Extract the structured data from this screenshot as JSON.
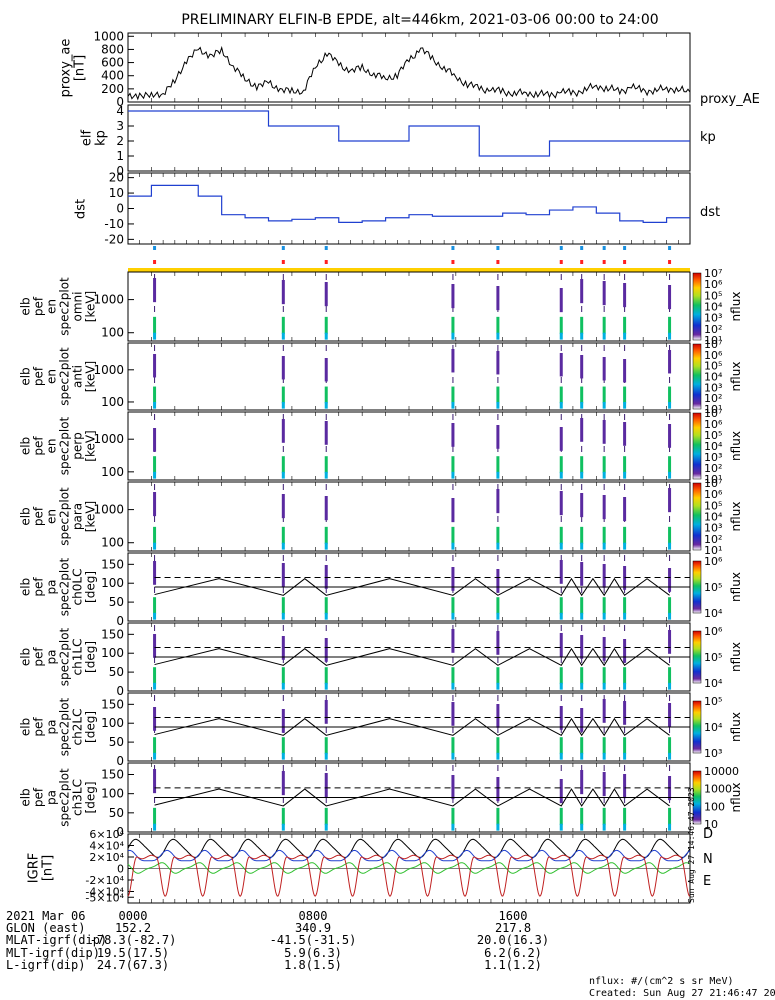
{
  "title": "PRELIMINARY ELFIN-B EPDE, alt=446km, 2021-03-06 00:00 to 24:00",
  "chart_data": [
    {
      "type": "line",
      "panel": "proxy_ae",
      "ylabel": "proxy_ae\n[nT]",
      "legend": "proxy_AE",
      "ylim": [
        0,
        1050
      ],
      "yticks": [
        "1000",
        "800",
        "600",
        "400",
        "200",
        "0"
      ],
      "x_hours": [
        0,
        0.5,
        1,
        1.5,
        2,
        2.5,
        3,
        3.5,
        4,
        4.5,
        5,
        5.5,
        6,
        6.5,
        7,
        7.5,
        8,
        8.5,
        9,
        9.5,
        10,
        10.5,
        11,
        11.5,
        12,
        12.5,
        13,
        13.5,
        14,
        14.5,
        15,
        15.5,
        16,
        16.5,
        17,
        17.5,
        18,
        18.5,
        19,
        19.5,
        20,
        20.5,
        21,
        21.5,
        22,
        22.5,
        23,
        23.5,
        24
      ],
      "values": [
        60,
        120,
        80,
        150,
        300,
        650,
        780,
        720,
        760,
        560,
        330,
        250,
        280,
        200,
        150,
        180,
        520,
        760,
        560,
        480,
        510,
        430,
        350,
        420,
        630,
        820,
        650,
        520,
        380,
        270,
        210,
        180,
        160,
        130,
        140,
        120,
        110,
        150,
        140,
        180,
        250,
        200,
        170,
        220,
        180,
        160,
        220,
        180,
        150
      ]
    },
    {
      "type": "step",
      "panel": "kp",
      "ylabel": "elf\nkp",
      "legend": "kp",
      "color": "#2040d0",
      "ylim": [
        0,
        4.4
      ],
      "yticks": [
        "4",
        "3",
        "2",
        "1",
        "0"
      ],
      "x_hours": [
        0,
        3,
        6,
        9,
        12,
        15,
        18,
        21,
        24
      ],
      "values": [
        4,
        4,
        3,
        2,
        3,
        1,
        2,
        2
      ]
    },
    {
      "type": "step",
      "panel": "dst",
      "ylabel": "dst",
      "legend": "dst",
      "color": "#2040d0",
      "ylim": [
        -23,
        23
      ],
      "yticks": [
        "20",
        "10",
        "0",
        "-10",
        "-20"
      ],
      "x_hours": [
        0,
        1,
        2,
        3,
        4,
        5,
        6,
        7,
        8,
        9,
        10,
        11,
        12,
        13,
        14,
        15,
        16,
        17,
        18,
        19,
        20,
        21,
        22,
        23,
        24
      ],
      "values": [
        8,
        15,
        15,
        8,
        -4,
        -6,
        -8,
        -7,
        -6,
        -9,
        -8,
        -6,
        -4,
        -5,
        -5,
        -5,
        -3,
        -4,
        -1,
        1,
        -3,
        -8,
        -9,
        -6,
        -2
      ]
    },
    {
      "type": "heatmap",
      "panel": "spectrograms",
      "pass_hours": [
        1.3,
        7.6,
        9.7,
        15.9,
        18.1,
        21.2,
        22.2,
        23.3,
        24.3,
        26.5
      ],
      "axis_hours": [
        0,
        27.5
      ],
      "energy_panels": [
        {
          "ylabel": "elb\npef\nen\nspec2plot\nomni\n[keV]",
          "yticks": [
            "1000",
            "100"
          ],
          "cbar": [
            "10⁷",
            "10⁶",
            "10⁵",
            "10⁴",
            "10³",
            "10²",
            "10¹"
          ],
          "cbar_label": "nflux"
        },
        {
          "ylabel": "elb\npef\nen\nspec2plot\nanti\n[keV]",
          "yticks": [
            "1000",
            "100"
          ],
          "cbar": [
            "10⁷",
            "10⁶",
            "10⁵",
            "10⁴",
            "10³",
            "10²",
            "10¹"
          ],
          "cbar_label": "nflux"
        },
        {
          "ylabel": "elb\npef\nen\nspec2plot\nperp\n[keV]",
          "yticks": [
            "1000",
            "100"
          ],
          "cbar": [
            "10⁷",
            "10⁶",
            "10⁵",
            "10⁴",
            "10³",
            "10²",
            "10¹"
          ],
          "cbar_label": "nflux"
        },
        {
          "ylabel": "elb\npef\nen\nspec2plot\npara\n[keV]",
          "yticks": [
            "1000",
            "100"
          ],
          "cbar": [
            "10⁷",
            "10⁶",
            "10⁵",
            "10⁴",
            "10³",
            "10²",
            "10¹"
          ],
          "cbar_label": "nflux"
        }
      ],
      "pitch_panels": [
        {
          "ylabel": "elb\npef\npa\nspec2plot\nch0LC\n[deg]",
          "yticks": [
            "150",
            "100",
            "50",
            "0"
          ],
          "cbar": [
            "10⁶",
            "10⁵",
            "10⁴"
          ],
          "cbar_label": "nflux"
        },
        {
          "ylabel": "elb\npef\npa\nspec2plot\nch1LC\n[deg]",
          "yticks": [
            "150",
            "100",
            "50",
            "0"
          ],
          "cbar": [
            "10⁶",
            "10⁵",
            "10⁴"
          ],
          "cbar_label": "nflux"
        },
        {
          "ylabel": "elb\npef\npa\nspec2plot\nch2LC\n[deg]",
          "yticks": [
            "150",
            "100",
            "50",
            "0"
          ],
          "cbar": [
            "10⁵",
            "10⁴",
            "10³"
          ],
          "cbar_label": "nflux"
        },
        {
          "ylabel": "elb\npef\npa\nspec2plot\nch3LC\n[deg]",
          "yticks": [
            "150",
            "100",
            "50",
            "0"
          ],
          "cbar": [
            "10000",
            "1000",
            "100",
            "10"
          ],
          "cbar_label": "nflux"
        }
      ]
    },
    {
      "type": "line",
      "panel": "igrf",
      "ylabel": "IGRF\n[nT]",
      "yticks": [
        "6×10⁴",
        "4×10⁴",
        "2×10⁴",
        "0",
        "-2×10⁴",
        "-4×10⁴",
        "-5×10⁴"
      ],
      "ylim": [
        -60000,
        60000
      ],
      "series": [
        {
          "name": "D",
          "color": "#000000",
          "kind": "wave",
          "center": 35000,
          "amp": 15000,
          "periods": 15
        },
        {
          "name": "N",
          "color": "#2040d0",
          "kind": "wave",
          "center": 20000,
          "amp": 9000,
          "periods": 15
        },
        {
          "name": "E",
          "color": "#30c030",
          "kind": "wave",
          "center": 1000,
          "amp": 8000,
          "periods": 15
        },
        {
          "name": "",
          "color": "#c02020",
          "kind": "dips",
          "center": 20000,
          "amp": 68000,
          "periods": 15
        }
      ]
    }
  ],
  "footer": {
    "rows": [
      [
        "2021 Mar 06",
        "0000",
        "0800",
        "1600"
      ],
      [
        "GLON (east)",
        "152.2",
        "340.9",
        "217.8"
      ],
      [
        "MLAT-igrf(dip)",
        "-78.3(-82.7)",
        "-41.5(-31.5)",
        "20.0(16.3)"
      ],
      [
        "MLT-igrf(dip)",
        "19.5(17.5)",
        "5.9(6.3)",
        "6.2(6.2)"
      ],
      [
        "L-igrf(dip)",
        "24.7(67.3)",
        "1.8(1.5)",
        "1.1(1.2)"
      ]
    ],
    "units_note": "nflux: #/(cm^2 s sr MeV)",
    "created": "Created: Sun Aug 27 21:46:47 2023",
    "side_stamp": "Sun Aug 27 14:46:47 2023"
  }
}
